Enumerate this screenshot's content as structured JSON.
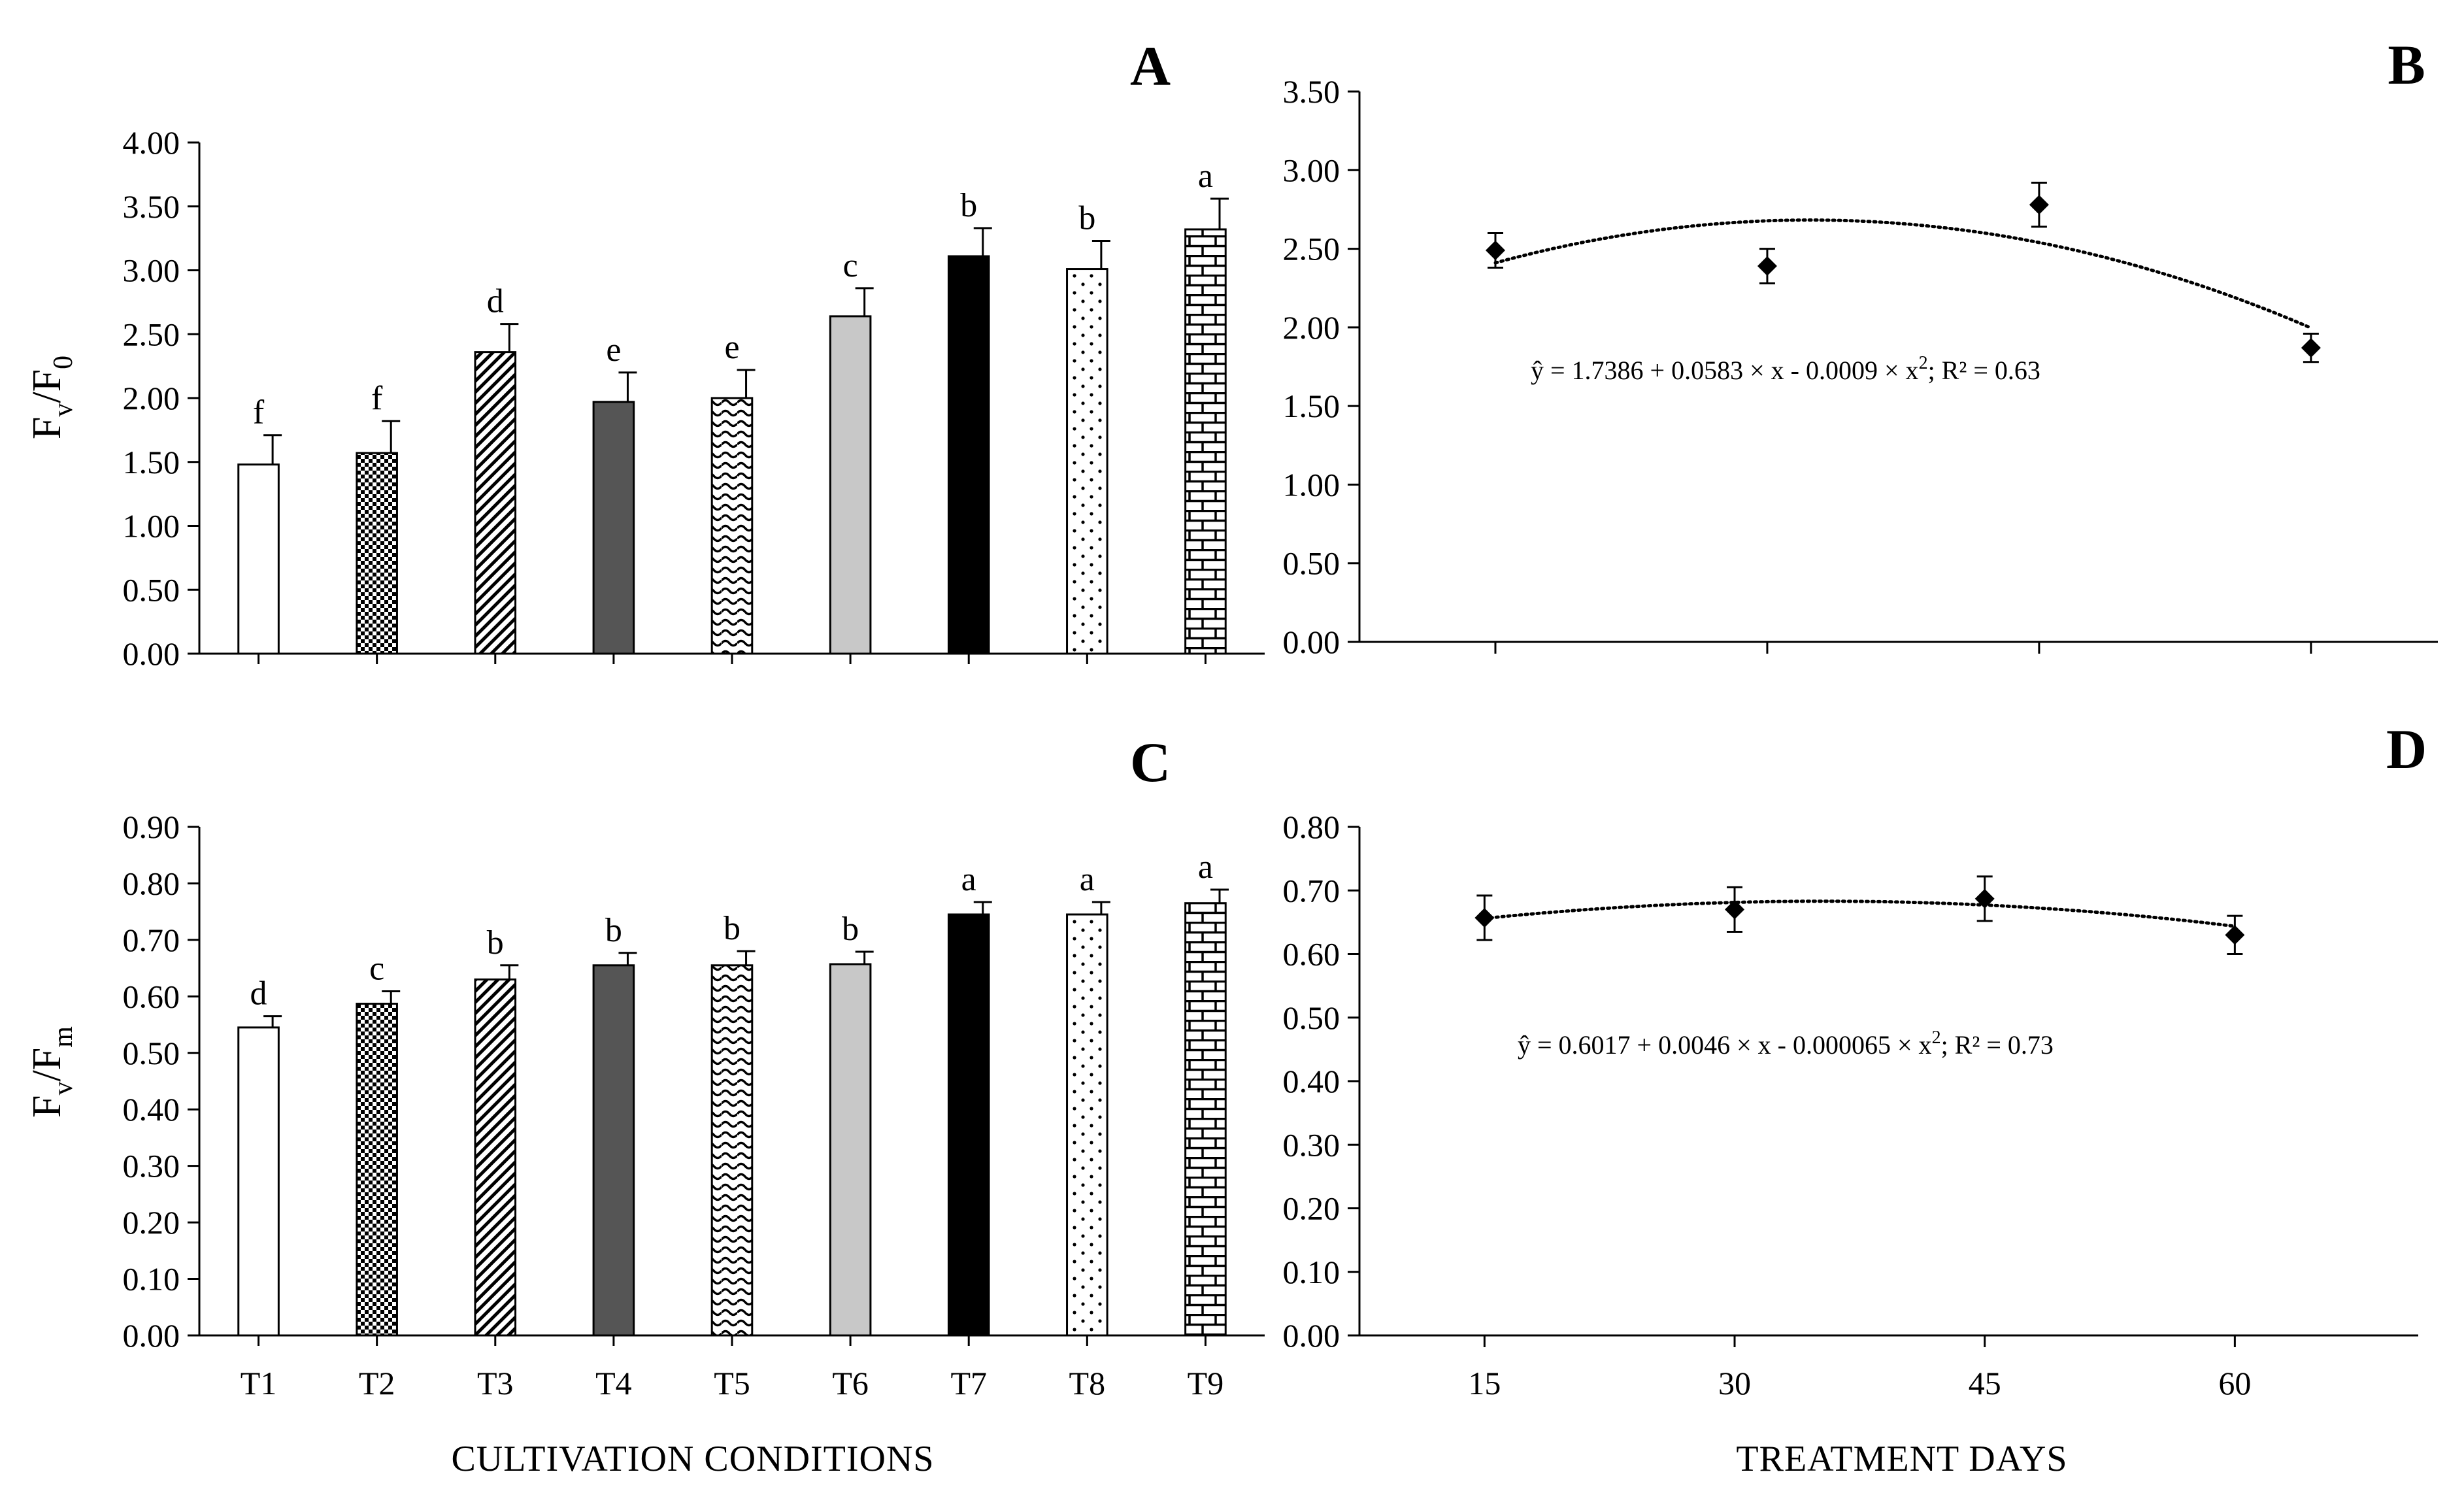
{
  "chart_data": [
    {
      "id": "A",
      "type": "bar",
      "panel_label": "A",
      "categories": [
        "T1",
        "T2",
        "T3",
        "T4",
        "T5",
        "T6",
        "T7",
        "T8",
        "T9"
      ],
      "values": [
        1.48,
        1.57,
        2.36,
        1.97,
        2.0,
        2.64,
        3.11,
        3.01,
        3.32
      ],
      "errors": [
        0.23,
        0.25,
        0.22,
        0.23,
        0.22,
        0.22,
        0.22,
        0.22,
        0.24
      ],
      "letters": [
        "f",
        "f",
        "d",
        "e",
        "e",
        "c",
        "b",
        "b",
        "a"
      ],
      "fills": [
        "#ffffff",
        "check",
        "diag",
        "#555555",
        "wave",
        "#c8c8c8",
        "#000000",
        "dots",
        "brick"
      ],
      "ylabel_main": "F",
      "ylabel_sub1": "v",
      "ylabel_mid": "/F",
      "ylabel_sub2": "0",
      "ylim": [
        0,
        4
      ],
      "ytick_labels": [
        "0.00",
        "0.50",
        "1.00",
        "1.50",
        "2.00",
        "2.50",
        "3.00",
        "3.50",
        "4.00"
      ]
    },
    {
      "id": "B",
      "type": "scatter",
      "panel_label": "B",
      "x": [
        15,
        30,
        45,
        60
      ],
      "y": [
        2.49,
        2.39,
        2.78,
        1.87
      ],
      "errors": [
        0.11,
        0.11,
        0.14,
        0.09
      ],
      "fit": {
        "a": 1.7386,
        "b": 0.0583,
        "c": -0.0009
      },
      "equation_prefix": "ŷ = 1.7386 + 0.0583 × x - 0.0009 ×  x",
      "equation_sup": "2",
      "equation_suffix": "; R² = 0.63",
      "xlim": [
        7.5,
        67
      ],
      "ylim": [
        0,
        3.5
      ],
      "ytick_labels": [
        "0.00",
        "0.50",
        "1.00",
        "1.50",
        "2.00",
        "2.50",
        "3.00",
        "3.50"
      ]
    },
    {
      "id": "C",
      "type": "bar",
      "panel_label": "C",
      "categories": [
        "T1",
        "T2",
        "T3",
        "T4",
        "T5",
        "T6",
        "T7",
        "T8",
        "T9"
      ],
      "values": [
        0.545,
        0.587,
        0.63,
        0.655,
        0.655,
        0.657,
        0.745,
        0.745,
        0.765
      ],
      "errors": [
        0.02,
        0.022,
        0.025,
        0.022,
        0.025,
        0.022,
        0.022,
        0.022,
        0.024
      ],
      "letters": [
        "d",
        "c",
        "b",
        "b",
        "b",
        "b",
        "a",
        "a",
        "a"
      ],
      "fills": [
        "#ffffff",
        "check",
        "diag",
        "#555555",
        "wave",
        "#c8c8c8",
        "#000000",
        "dots",
        "brick"
      ],
      "ylabel_main": "F",
      "ylabel_sub1": "v",
      "ylabel_mid": "/F",
      "ylabel_sub2": "m",
      "xlabel": "CULTIVATION CONDITIONS",
      "ylim": [
        0,
        0.9
      ],
      "ytick_labels": [
        "0.00",
        "0.10",
        "0.20",
        "0.30",
        "0.40",
        "0.50",
        "0.60",
        "0.70",
        "0.80",
        "0.90"
      ]
    },
    {
      "id": "D",
      "type": "scatter",
      "panel_label": "D",
      "x": [
        15,
        30,
        45,
        60
      ],
      "y": [
        0.657,
        0.67,
        0.687,
        0.63
      ],
      "errors": [
        0.035,
        0.035,
        0.035,
        0.03
      ],
      "fit": {
        "a": 0.6017,
        "b": 0.0046,
        "c": -6.5e-05
      },
      "equation_prefix": "ŷ = 0.6017 + 0.0046 × x - 0.000065 ×  x",
      "equation_sup": "2",
      "equation_suffix": "; R² = 0.73",
      "xlabel": "TREATMENT  DAYS",
      "xtick_labels": [
        "15",
        "30",
        "45",
        "60"
      ],
      "xlim": [
        7.5,
        71
      ],
      "ylim": [
        0,
        0.8
      ],
      "ytick_labels": [
        "0.00",
        "0.10",
        "0.20",
        "0.30",
        "0.40",
        "0.50",
        "0.60",
        "0.70",
        "0.80"
      ]
    }
  ]
}
